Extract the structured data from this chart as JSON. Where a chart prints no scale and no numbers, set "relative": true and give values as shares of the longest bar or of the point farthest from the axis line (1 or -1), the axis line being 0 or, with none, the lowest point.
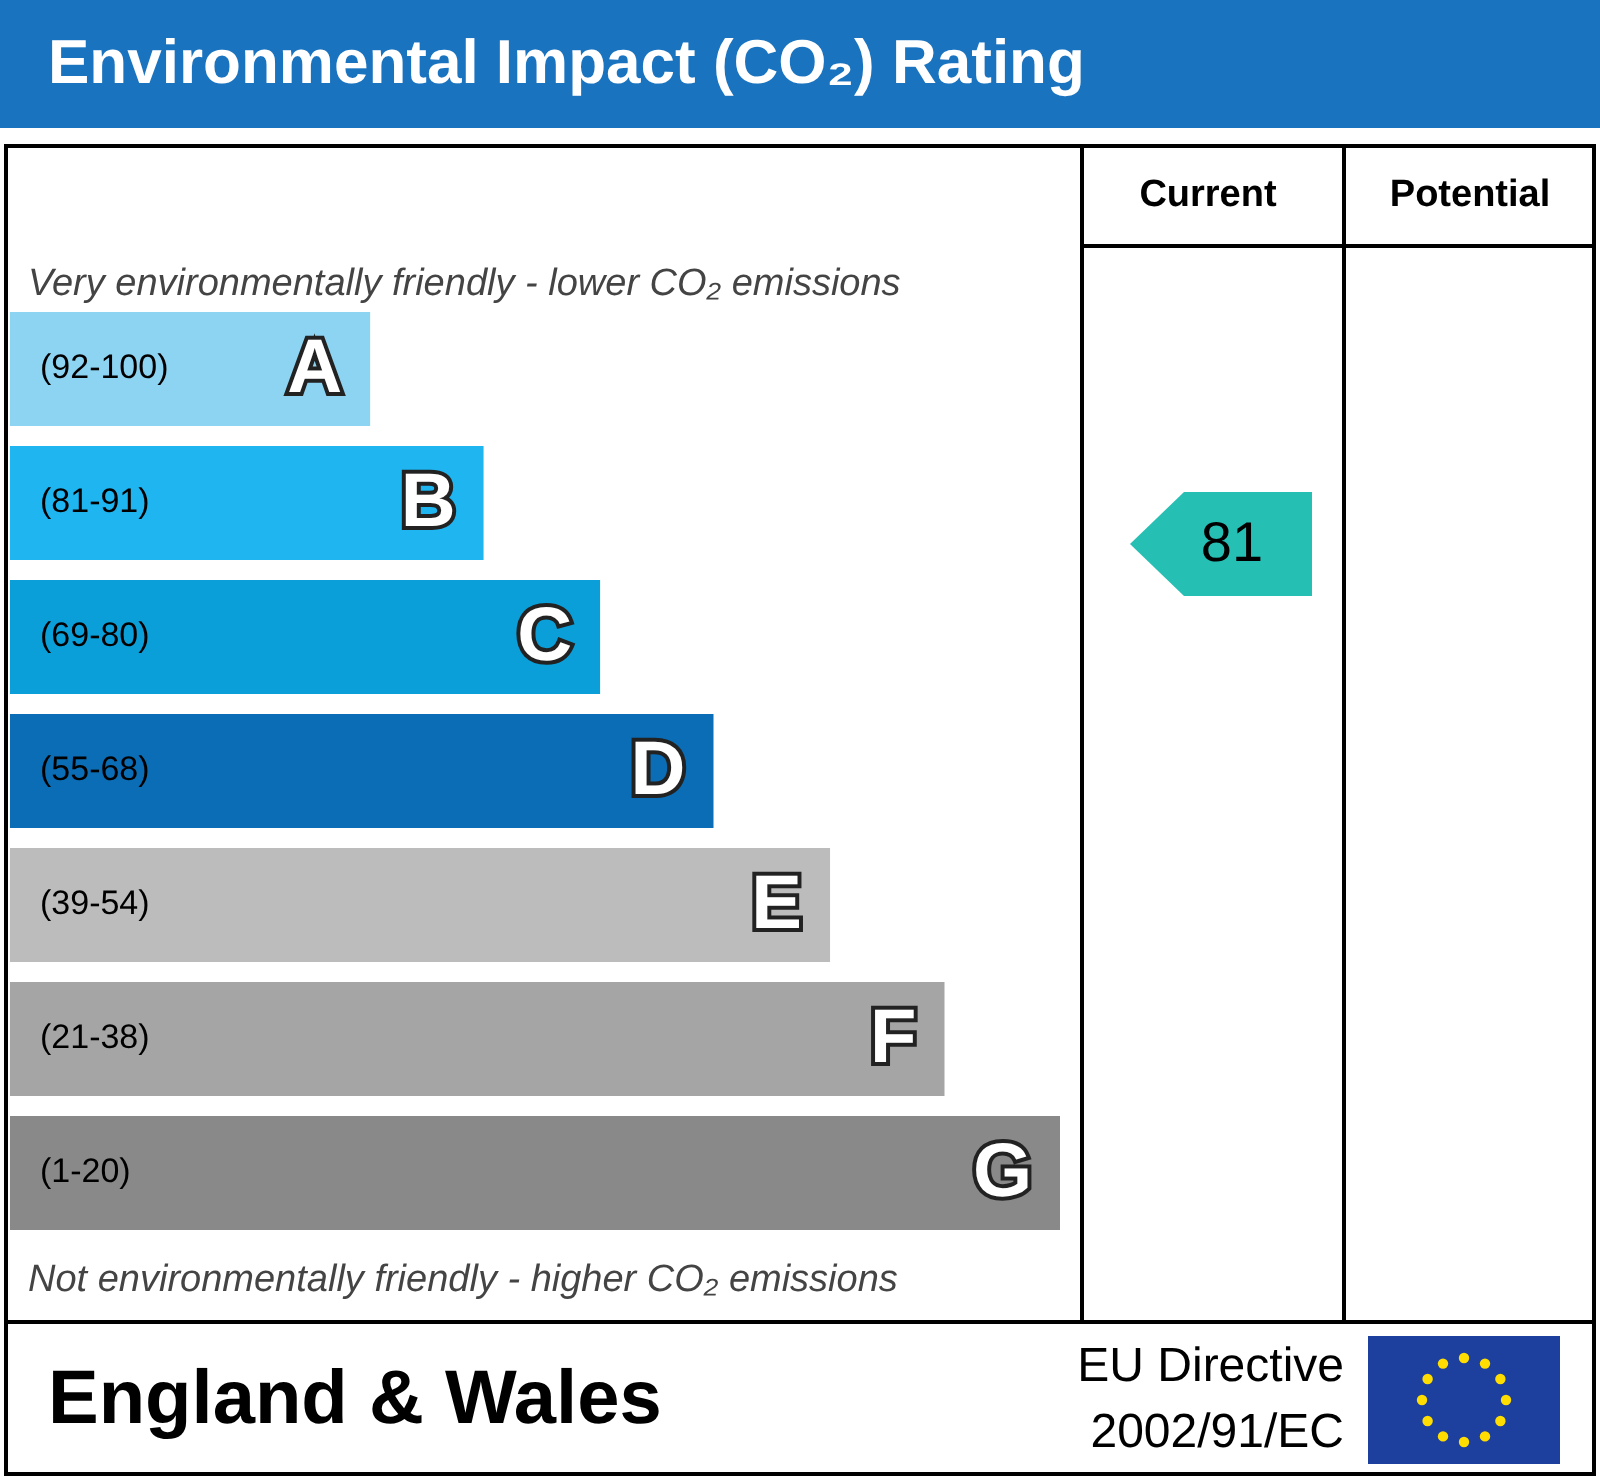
{
  "chart_data": {
    "type": "bar",
    "orientation": "horizontal",
    "relative": true,
    "title": "Environmental Impact (CO₂) Rating",
    "categories": [
      "A",
      "B",
      "C",
      "D",
      "E",
      "F",
      "G"
    ],
    "values": [
      0.343,
      0.451,
      0.562,
      0.67,
      0.781,
      0.89,
      1
    ],
    "colors": [
      "#8dd3f2",
      "#1eb5f0",
      "#0b9fd9",
      "#0a6db5",
      "#bcbcbc",
      "#a5a5a5",
      "#898989"
    ],
    "annotations": [
      "Very environmentally friendly - lower CO₂ emissions",
      "Not environmentally friendly - higher CO₂ emissions",
      "Current",
      "Potential",
      "England & Wales",
      "EU Directive",
      "2002/91/EC",
      "(92-100)",
      "(81-91)",
      "(69-80)",
      "(55-68)",
      "(39-54)",
      "(21-38)",
      "(1-20)",
      "81"
    ],
    "legend": false
  }
}
